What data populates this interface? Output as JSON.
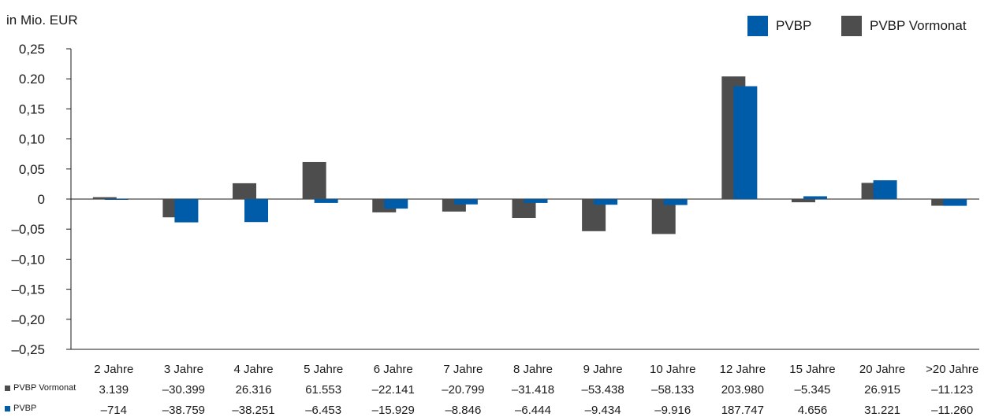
{
  "chart_data": {
    "type": "bar",
    "ylabel": "in Mio. EUR",
    "ylim": [
      -0.25,
      0.25
    ],
    "yticks": [
      0.25,
      0.2,
      0.15,
      0.1,
      0.05,
      0,
      -0.05,
      -0.1,
      -0.15,
      -0.2,
      -0.25
    ],
    "ytick_labels": [
      "0,25",
      "0.20",
      "0,15",
      "0,10",
      "0,05",
      "0",
      "–0,05",
      "–0,10",
      "–0,15",
      "–0,20",
      "–0,25"
    ],
    "categories": [
      "2 Jahre",
      "3 Jahre",
      "4 Jahre",
      "5 Jahre",
      "6 Jahre",
      "7 Jahre",
      "8 Jahre",
      "9 Jahre",
      "10 Jahre",
      "12 Jahre",
      "15 Jahre",
      "20 Jahre",
      ">20 Jahre"
    ],
    "series": [
      {
        "name": "PVBP Vormonat",
        "color": "#4d4d4d",
        "values": [
          0.003139,
          -0.030399,
          0.026316,
          0.061553,
          -0.022141,
          -0.020799,
          -0.031418,
          -0.053438,
          -0.058133,
          0.20398,
          -0.005345,
          0.026915,
          -0.011123
        ],
        "labels": [
          "3.139",
          "–30.399",
          "26.316",
          "61.553",
          "–22.141",
          "–20.799",
          "–31.418",
          "–53.438",
          "–58.133",
          "203.980",
          "–5.345",
          "26.915",
          "–11.123"
        ]
      },
      {
        "name": "PVBP",
        "color": "#005ca9",
        "values": [
          -0.000714,
          -0.038759,
          -0.038251,
          -0.006453,
          -0.015929,
          -0.008846,
          -0.006444,
          -0.009434,
          -0.009916,
          0.187747,
          0.004656,
          0.031221,
          -0.01126
        ],
        "labels": [
          "–714",
          "–38.759",
          "–38.251",
          "–6.453",
          "–15.929",
          "–8.846",
          "–6.444",
          "–9.434",
          "–9.916",
          "187.747",
          "4.656",
          "31.221",
          "–11.260"
        ]
      }
    ],
    "legend": {
      "position": "top-right",
      "order": [
        "PVBP",
        "PVBP Vormonat"
      ]
    },
    "grid": false
  }
}
